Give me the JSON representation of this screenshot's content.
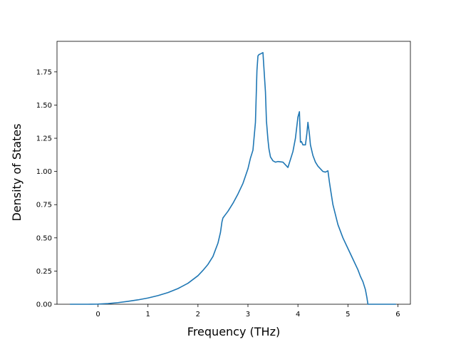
{
  "chart_data": {
    "type": "line",
    "title": "",
    "xlabel": "Frequency (THz)",
    "ylabel": "Density of States",
    "xlim": [
      -0.82,
      6.25
    ],
    "ylim": [
      0.0,
      1.98
    ],
    "grid": false,
    "legend": "none",
    "line_color": "#1f77b4",
    "x_ticks": [
      {
        "value": 0,
        "label": "0"
      },
      {
        "value": 1,
        "label": "1"
      },
      {
        "value": 2,
        "label": "2"
      },
      {
        "value": 3,
        "label": "3"
      },
      {
        "value": 4,
        "label": "4"
      },
      {
        "value": 5,
        "label": "5"
      },
      {
        "value": 6,
        "label": "6"
      }
    ],
    "y_ticks": [
      {
        "value": 0.0,
        "label": "0.00"
      },
      {
        "value": 0.25,
        "label": "0.25"
      },
      {
        "value": 0.5,
        "label": "0.50"
      },
      {
        "value": 0.75,
        "label": "0.75"
      },
      {
        "value": 1.0,
        "label": "1.00"
      },
      {
        "value": 1.25,
        "label": "1.25"
      },
      {
        "value": 1.5,
        "label": "1.50"
      },
      {
        "value": 1.75,
        "label": "1.75"
      }
    ],
    "series": [
      {
        "x": [
          -0.55,
          -0.2,
          0.0,
          0.2,
          0.4,
          0.6,
          0.8,
          1.0,
          1.2,
          1.4,
          1.6,
          1.8,
          2.0,
          2.1,
          2.2,
          2.3,
          2.35,
          2.4,
          2.45,
          2.48,
          2.5,
          2.52,
          2.55,
          2.6,
          2.7,
          2.8,
          2.9,
          3.0,
          3.05,
          3.1,
          3.15,
          3.18,
          3.2,
          3.22,
          3.25,
          3.3,
          3.35,
          3.37,
          3.4,
          3.42,
          3.45,
          3.5,
          3.55,
          3.6,
          3.7,
          3.75,
          3.8,
          3.85,
          3.9,
          3.95,
          4.0,
          4.03,
          4.05,
          4.07,
          4.1,
          4.15,
          4.18,
          4.2,
          4.23,
          4.25,
          4.3,
          4.35,
          4.4,
          4.5,
          4.55,
          4.6,
          4.63,
          4.65,
          4.7,
          4.8,
          4.9,
          5.0,
          5.1,
          5.2,
          5.25,
          5.3,
          5.35,
          5.38,
          5.4,
          5.45,
          5.55,
          5.95
        ],
        "y": [
          0.0,
          0.0,
          0.001,
          0.005,
          0.012,
          0.022,
          0.033,
          0.047,
          0.065,
          0.088,
          0.118,
          0.158,
          0.215,
          0.255,
          0.3,
          0.36,
          0.41,
          0.46,
          0.54,
          0.62,
          0.65,
          0.66,
          0.675,
          0.7,
          0.76,
          0.83,
          0.91,
          1.02,
          1.1,
          1.16,
          1.37,
          1.76,
          1.87,
          1.88,
          1.885,
          1.895,
          1.6,
          1.38,
          1.24,
          1.17,
          1.11,
          1.08,
          1.07,
          1.075,
          1.07,
          1.05,
          1.03,
          1.09,
          1.15,
          1.25,
          1.41,
          1.45,
          1.22,
          1.225,
          1.2,
          1.2,
          1.29,
          1.37,
          1.28,
          1.2,
          1.12,
          1.07,
          1.04,
          1.0,
          0.995,
          1.005,
          0.92,
          0.87,
          0.75,
          0.6,
          0.5,
          0.42,
          0.34,
          0.26,
          0.21,
          0.17,
          0.11,
          0.05,
          0.0,
          0.0,
          0.0,
          0.0
        ]
      }
    ]
  }
}
